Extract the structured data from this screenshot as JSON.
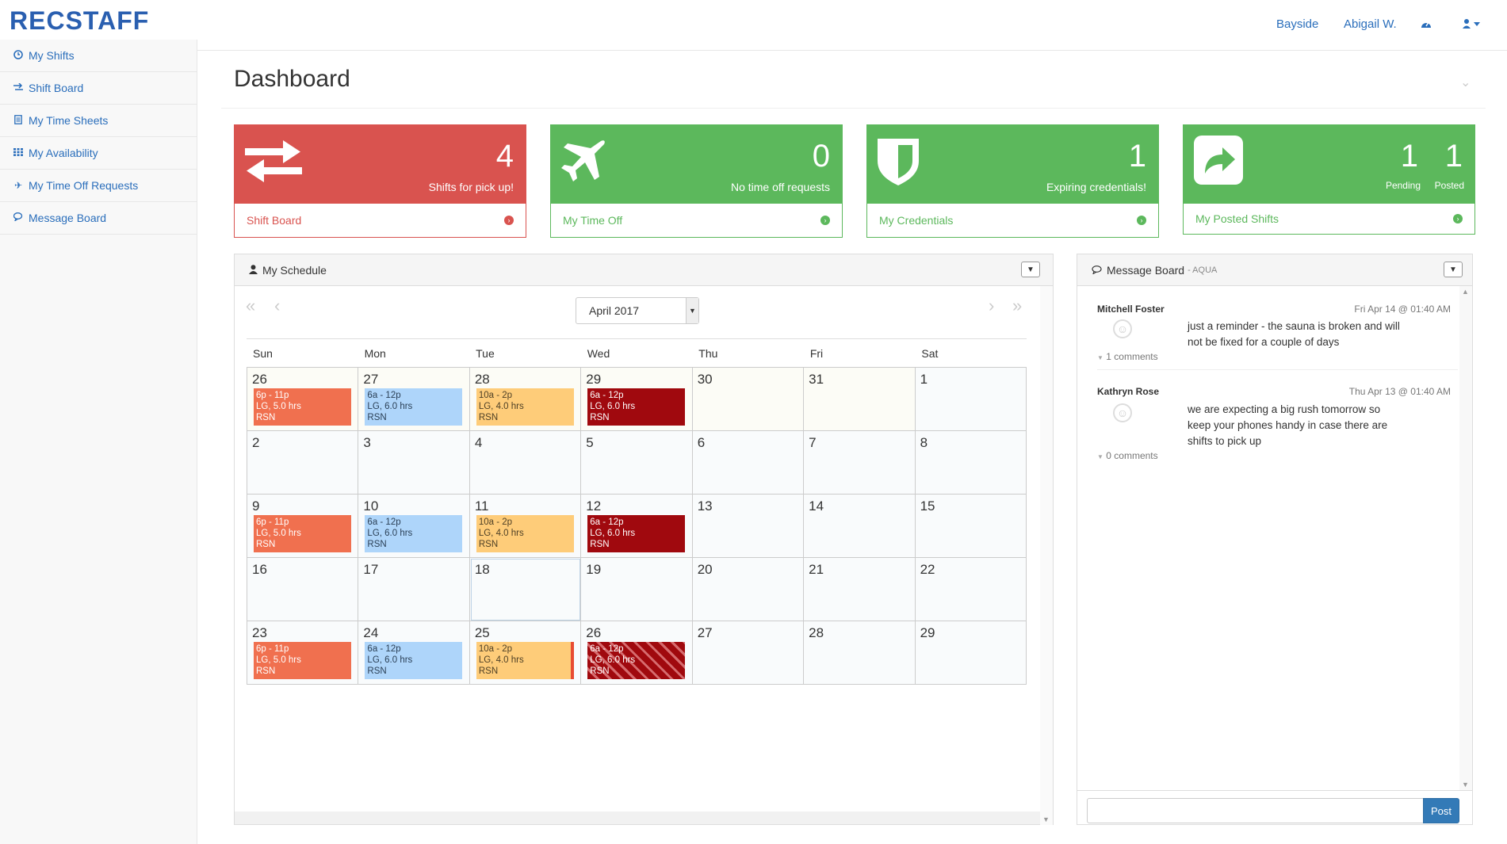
{
  "app": {
    "logo": "RECSTAFF"
  },
  "topnav": {
    "location": "Bayside",
    "user": "Abigail W."
  },
  "sidebar": {
    "items": [
      {
        "label": "My Shifts",
        "icon": "clock-icon"
      },
      {
        "label": "Shift Board",
        "icon": "exchange-icon"
      },
      {
        "label": "My Time Sheets",
        "icon": "document-icon"
      },
      {
        "label": "My Availability",
        "icon": "grid-icon"
      },
      {
        "label": "My Time Off Requests",
        "icon": "plane-icon"
      },
      {
        "label": "Message Board",
        "icon": "comments-icon"
      }
    ]
  },
  "page": {
    "title": "Dashboard"
  },
  "tiles": [
    {
      "count": "4",
      "subtitle": "Shifts for pick up!",
      "link": "Shift Board",
      "color": "#d9534f"
    },
    {
      "count": "0",
      "subtitle": "No time off requests",
      "link": "My Time Off",
      "color": "#5cb85c"
    },
    {
      "count": "1",
      "subtitle": "Expiring credentials!",
      "link": "My Credentials",
      "color": "#5cb85c"
    },
    {
      "pending_count": "1",
      "pending_label": "Pending",
      "posted_count": "1",
      "posted_label": "Posted",
      "link": "My Posted Shifts",
      "color": "#5cb85c"
    }
  ],
  "schedule": {
    "title": "My Schedule",
    "month": "April 2017",
    "dows": [
      "Sun",
      "Mon",
      "Tue",
      "Wed",
      "Thu",
      "Fri",
      "Sat"
    ],
    "weeks": [
      [
        {
          "d": "26",
          "other": true,
          "evt": {
            "time": "6p - 11p",
            "detail": "LG, 5.0 hrs",
            "loc": "RSN",
            "style": "orange"
          }
        },
        {
          "d": "27",
          "other": true,
          "evt": {
            "time": "6a - 12p",
            "detail": "LG, 6.0 hrs",
            "loc": "RSN",
            "style": "blue"
          }
        },
        {
          "d": "28",
          "other": true,
          "evt": {
            "time": "10a - 2p",
            "detail": "LG, 4.0 hrs",
            "loc": "RSN",
            "style": "yellow"
          }
        },
        {
          "d": "29",
          "other": true,
          "evt": {
            "time": "6a - 12p",
            "detail": "LG, 6.0 hrs",
            "loc": "RSN",
            "style": "darkred"
          }
        },
        {
          "d": "30",
          "other": true
        },
        {
          "d": "31",
          "other": true
        },
        {
          "d": "1"
        }
      ],
      [
        {
          "d": "2"
        },
        {
          "d": "3"
        },
        {
          "d": "4"
        },
        {
          "d": "5"
        },
        {
          "d": "6"
        },
        {
          "d": "7"
        },
        {
          "d": "8"
        }
      ],
      [
        {
          "d": "9",
          "evt": {
            "time": "6p - 11p",
            "detail": "LG, 5.0 hrs",
            "loc": "RSN",
            "style": "orange"
          }
        },
        {
          "d": "10",
          "evt": {
            "time": "6a - 12p",
            "detail": "LG, 6.0 hrs",
            "loc": "RSN",
            "style": "blue"
          }
        },
        {
          "d": "11",
          "evt": {
            "time": "10a - 2p",
            "detail": "LG, 4.0 hrs",
            "loc": "RSN",
            "style": "yellow"
          }
        },
        {
          "d": "12",
          "evt": {
            "time": "6a - 12p",
            "detail": "LG, 6.0 hrs",
            "loc": "RSN",
            "style": "darkred"
          }
        },
        {
          "d": "13"
        },
        {
          "d": "14"
        },
        {
          "d": "15"
        }
      ],
      [
        {
          "d": "16"
        },
        {
          "d": "17"
        },
        {
          "d": "18",
          "today": true
        },
        {
          "d": "19"
        },
        {
          "d": "20"
        },
        {
          "d": "21"
        },
        {
          "d": "22"
        }
      ],
      [
        {
          "d": "23",
          "evt": {
            "time": "6p - 11p",
            "detail": "LG, 5.0 hrs",
            "loc": "RSN",
            "style": "orange"
          }
        },
        {
          "d": "24",
          "evt": {
            "time": "6a - 12p",
            "detail": "LG, 6.0 hrs",
            "loc": "RSN",
            "style": "blue"
          }
        },
        {
          "d": "25",
          "evt": {
            "time": "10a - 2p",
            "detail": "LG, 4.0 hrs",
            "loc": "RSN",
            "style": "yellow border-right"
          }
        },
        {
          "d": "26",
          "evt": {
            "time": "6a - 12p",
            "detail": "LG, 6.0 hrs",
            "loc": "RSN",
            "style": "striped"
          }
        },
        {
          "d": "27"
        },
        {
          "d": "28"
        },
        {
          "d": "29"
        }
      ]
    ]
  },
  "message_board": {
    "title": "Message Board",
    "subtitle": "- AQUA",
    "posts": [
      {
        "author": "Mitchell Foster",
        "date": "Fri Apr 14 @ 01:40 AM",
        "text": "just a reminder - the sauna is broken and will not be fixed for a couple of days",
        "comments": "1 comments"
      },
      {
        "author": "Kathryn Rose",
        "date": "Thu Apr 13 @ 01:40 AM",
        "text": "we are expecting a big rush tomorrow so keep your phones handy in case there are shifts to pick up",
        "comments": "0 comments"
      }
    ],
    "post_button": "Post"
  }
}
